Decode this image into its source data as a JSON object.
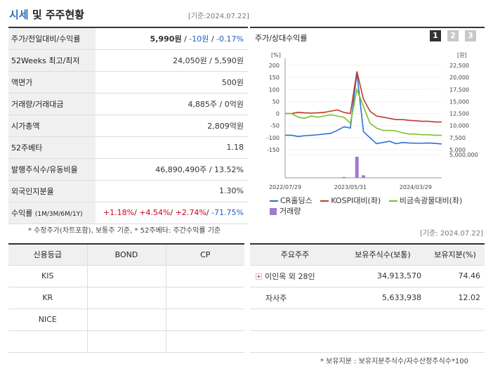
{
  "header": {
    "title_accent": "시세",
    "title_rest": " 및 주주현황",
    "basis": "[기준:2024.07.22]"
  },
  "price": {
    "rows": [
      {
        "label": "주가/전일대비/수익률",
        "v1": "5,990원",
        "sep1": " / ",
        "v2": "-10원",
        "sep2": " / ",
        "v3": "-0.17%"
      },
      {
        "label": "52Weeks 최고/최저",
        "value": "24,050원 / 5,590원"
      },
      {
        "label": "액면가",
        "value": "500원"
      },
      {
        "label": "거래량/거래대금",
        "value": "4,885주 / 0억원"
      },
      {
        "label": "시가총액",
        "value": "2,809억원"
      },
      {
        "label": "52주베타",
        "value": "1.18"
      },
      {
        "label": "발행주식수/유동비율",
        "value": "46,890,490주 / 13.52%"
      },
      {
        "label": "외국인지분율",
        "value": "1.30%"
      }
    ],
    "returns": {
      "label": "수익률",
      "label_sub": "(1M/3M/6M/1Y)",
      "r1": "+1.18%",
      "r2": "+4.54%",
      "r3": "+2.74%",
      "r4": "-71.75%",
      "sep": "/ "
    }
  },
  "footnote1": "* 수정주가(차트포함), 보통주 기준, * 52주베타: 주간수익률 기준",
  "chart": {
    "title": "주가/상대수익률",
    "buttons": [
      "1",
      "2",
      "3"
    ],
    "active_color": "#333333",
    "inactive_color": "#c8c8c8",
    "left_unit": "[%]",
    "right_unit": "[원]",
    "vol_unit": "5,000,000",
    "left_ticks": [
      "200",
      "150",
      "100",
      "50",
      "0",
      "-50",
      "-100",
      "-150"
    ],
    "right_ticks": [
      "22,500",
      "20,000",
      "17,500",
      "15,000",
      "12,500",
      "10,000",
      "7,500",
      "5,000"
    ],
    "x_labels": [
      "2022/07/29",
      "2023/05/31",
      "2024/03/29"
    ],
    "legend": [
      {
        "name": "CR홀딩스",
        "color": "#2b6fd4"
      },
      {
        "name": "KOSPI대비(좌)",
        "color": "#c0392b"
      },
      {
        "name": "비금속광물대비(좌)",
        "color": "#7cbf2e"
      },
      {
        "name": "거래량",
        "color": "#a07ad0"
      }
    ]
  },
  "chart_data": {
    "type": "line",
    "x": [
      "2022/07",
      "2022/08",
      "2022/09",
      "2022/10",
      "2022/11",
      "2022/12",
      "2023/01",
      "2023/02",
      "2023/03",
      "2023/04",
      "2023/05",
      "2023/06",
      "2023/07",
      "2023/08",
      "2023/09",
      "2023/10",
      "2023/11",
      "2023/12",
      "2024/01",
      "2024/02",
      "2024/03",
      "2024/04",
      "2024/05",
      "2024/06",
      "2024/07"
    ],
    "y_left_range": [
      -150,
      200
    ],
    "y_right_range": [
      5000,
      22500
    ],
    "series": [
      {
        "name": "CR홀딩스",
        "axis": "left",
        "values": [
          -90,
          -90,
          -95,
          -92,
          -90,
          -88,
          -85,
          -82,
          -70,
          -55,
          -60,
          170,
          -75,
          -100,
          -125,
          -120,
          -115,
          -125,
          -120,
          -122,
          -123,
          -123,
          -122,
          -124,
          -126
        ]
      },
      {
        "name": "KOSPI대비(좌)",
        "axis": "left",
        "values": [
          0,
          0,
          5,
          3,
          2,
          3,
          5,
          10,
          15,
          5,
          0,
          175,
          60,
          10,
          -10,
          -15,
          -20,
          -25,
          -25,
          -28,
          -30,
          -32,
          -32,
          -35,
          -35
        ]
      },
      {
        "name": "비금속광물대비(좌)",
        "axis": "left",
        "values": [
          0,
          0,
          -15,
          -20,
          -10,
          -15,
          -10,
          -5,
          -10,
          -15,
          -40,
          100,
          30,
          -40,
          -60,
          -70,
          -70,
          -72,
          -80,
          -85,
          -85,
          -88,
          -88,
          -90,
          -90
        ]
      },
      {
        "name": "거래량",
        "axis": "volume",
        "values": [
          0,
          0,
          0,
          0,
          0,
          0,
          0,
          0,
          0,
          200000,
          0,
          5000000,
          600000,
          0,
          0,
          0,
          0,
          0,
          0,
          0,
          0,
          0,
          0,
          0,
          0
        ]
      }
    ]
  },
  "credit": {
    "headers": [
      "신용등급",
      "BOND",
      "CP"
    ],
    "rows": [
      [
        "KIS",
        "",
        ""
      ],
      [
        "KR",
        "",
        ""
      ],
      [
        "NICE",
        "",
        ""
      ],
      [
        "",
        "",
        ""
      ]
    ]
  },
  "holders": {
    "basis": "[기준: 2024.07.22]",
    "headers": [
      "주요주주",
      "보유주식수(보통)",
      "보유지분(%)"
    ],
    "rows": [
      {
        "name": "이인옥 외 28인",
        "shares": "34,913,570",
        "pct": "74.46"
      },
      {
        "name": "자사주",
        "shares": "5,633,938",
        "pct": "12.02"
      }
    ]
  },
  "footnote2": "* 보유지분 : 보유지분주식수/자수산정주식수*100"
}
